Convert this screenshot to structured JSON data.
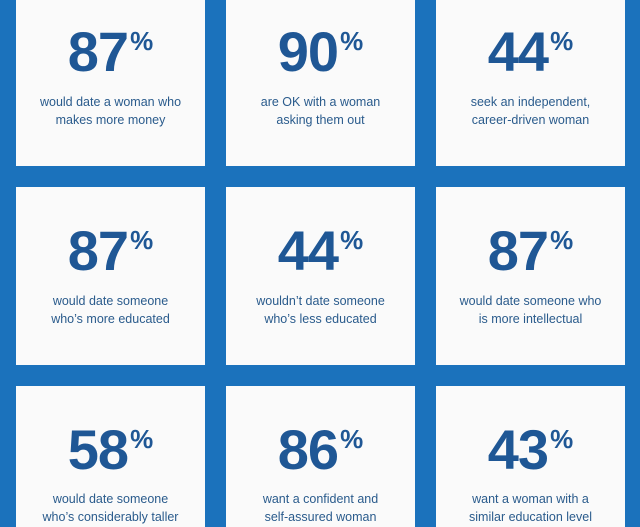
{
  "cards": [
    {
      "value": "87",
      "unit": "%",
      "line1": "would date a woman who",
      "line2": "makes more money"
    },
    {
      "value": "90",
      "unit": "%",
      "line1": "are OK with a woman",
      "line2": "asking them out"
    },
    {
      "value": "44",
      "unit": "%",
      "line1": "seek an independent,",
      "line2": "career-driven woman"
    },
    {
      "value": "87",
      "unit": "%",
      "line1": "would date someone",
      "line2": "who’s more educated"
    },
    {
      "value": "44",
      "unit": "%",
      "line1": "wouldn’t date someone",
      "line2": "who’s less educated"
    },
    {
      "value": "87",
      "unit": "%",
      "line1": "would date someone who",
      "line2": "is more intellectual"
    },
    {
      "value": "58",
      "unit": "%",
      "line1": "would date someone",
      "line2": "who’s considerably taller"
    },
    {
      "value": "86",
      "unit": "%",
      "line1": "want a confident and",
      "line2": "self-assured woman"
    },
    {
      "value": "43",
      "unit": "%",
      "line1": "want a woman with a",
      "line2": "similar education level"
    }
  ],
  "colors": {
    "background": "#1b72bc",
    "card": "#fafafa",
    "number": "#1f5795",
    "text": "#2a5b8c"
  }
}
